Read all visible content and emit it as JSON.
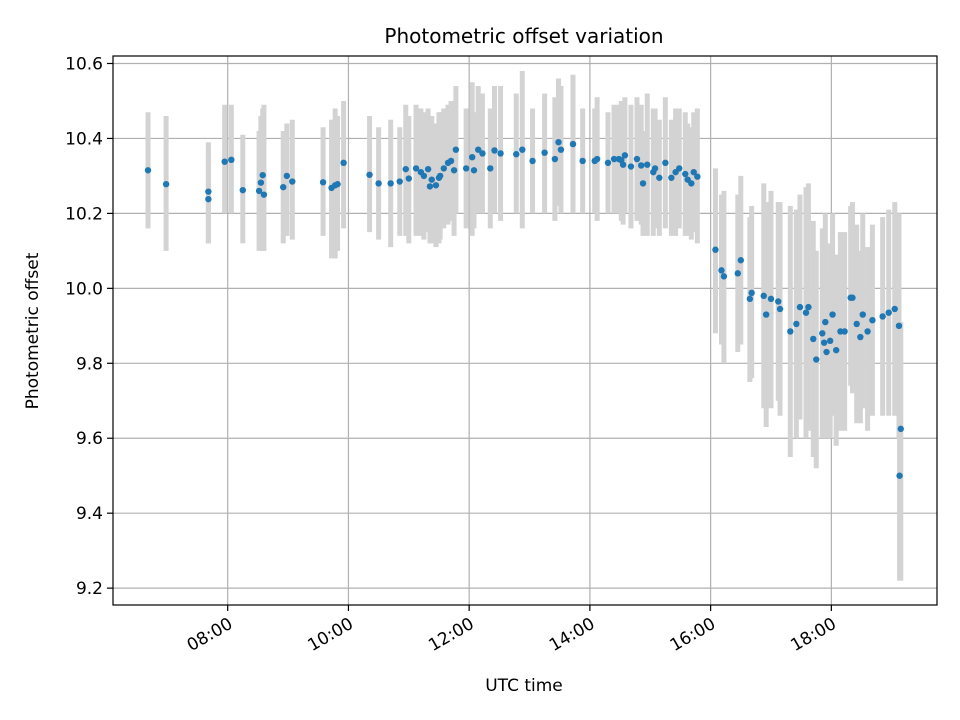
{
  "chart_data": {
    "type": "scatter",
    "title": "Photometric offset variation",
    "xlabel": "UTC time",
    "ylabel": "Photometric offset",
    "x_unit": "hours UTC",
    "xlim": [
      6.1,
      19.75
    ],
    "ylim": [
      9.155,
      10.62
    ],
    "xticks": [
      {
        "value": 8,
        "label": "08:00"
      },
      {
        "value": 10,
        "label": "10:00"
      },
      {
        "value": 12,
        "label": "12:00"
      },
      {
        "value": 14,
        "label": "14:00"
      },
      {
        "value": 16,
        "label": "16:00"
      },
      {
        "value": 18,
        "label": "18:00"
      }
    ],
    "yticks": [
      {
        "value": 9.2,
        "label": "9.2"
      },
      {
        "value": 9.4,
        "label": "9.4"
      },
      {
        "value": 9.6,
        "label": "9.6"
      },
      {
        "value": 9.8,
        "label": "9.8"
      },
      {
        "value": 10.0,
        "label": "10.0"
      },
      {
        "value": 10.2,
        "label": "10.2"
      },
      {
        "value": 10.4,
        "label": "10.4"
      },
      {
        "value": 10.6,
        "label": "10.6"
      }
    ],
    "grid": true,
    "colors": {
      "points": "#1f77b4",
      "error_bars": "#d3d3d3",
      "grid": "#b0b0b0",
      "axes": "#000000"
    },
    "series": [
      {
        "x": [
          6.68,
          6.98,
          7.68,
          7.68,
          7.95,
          8.06,
          8.25,
          8.52,
          8.55,
          8.58,
          8.6,
          8.92,
          8.98,
          9.07,
          9.58,
          9.72,
          9.78,
          9.82,
          9.92,
          10.35,
          10.5,
          10.7,
          10.85,
          10.95,
          11.0,
          11.12,
          11.2,
          11.25,
          11.32,
          11.35,
          11.38,
          11.45,
          11.5,
          11.52,
          11.58,
          11.65,
          11.7,
          11.75,
          11.78,
          11.95,
          12.05,
          12.08,
          12.15,
          12.22,
          12.35,
          12.42,
          12.52,
          12.78,
          12.88,
          13.05,
          13.25,
          13.42,
          13.48,
          13.52,
          13.72,
          13.88,
          14.08,
          14.12,
          14.3,
          14.4,
          14.48,
          14.52,
          14.55,
          14.58,
          14.68,
          14.78,
          14.85,
          14.88,
          14.95,
          15.05,
          15.08,
          15.15,
          15.25,
          15.35,
          15.42,
          15.48,
          15.58,
          15.62,
          15.68,
          15.72,
          15.78,
          16.08,
          16.18,
          16.22,
          16.45,
          16.5,
          16.65,
          16.68,
          16.88,
          16.92,
          17.0,
          17.12,
          17.15,
          17.32,
          17.42,
          17.48,
          17.58,
          17.62,
          17.7,
          17.75,
          17.85,
          17.88,
          17.9,
          17.92,
          17.98,
          18.02,
          18.08,
          18.15,
          18.22,
          18.32,
          18.35,
          18.42,
          18.48,
          18.52,
          18.6,
          18.68,
          18.85,
          18.95,
          19.05,
          19.12,
          19.15
        ],
        "y": [
          10.315,
          10.278,
          10.238,
          10.258,
          10.338,
          10.343,
          10.262,
          10.26,
          10.282,
          10.302,
          10.25,
          10.27,
          10.3,
          10.285,
          10.283,
          10.268,
          10.275,
          10.278,
          10.335,
          10.303,
          10.28,
          10.28,
          10.285,
          10.318,
          10.293,
          10.32,
          10.31,
          10.3,
          10.318,
          10.272,
          10.29,
          10.275,
          10.295,
          10.3,
          10.32,
          10.335,
          10.34,
          10.315,
          10.37,
          10.32,
          10.35,
          10.315,
          10.37,
          10.36,
          10.32,
          10.368,
          10.36,
          10.358,
          10.37,
          10.34,
          10.362,
          10.345,
          10.39,
          10.37,
          10.385,
          10.34,
          10.34,
          10.345,
          10.335,
          10.345,
          10.345,
          10.342,
          10.33,
          10.355,
          10.325,
          10.345,
          10.328,
          10.28,
          10.33,
          10.31,
          10.32,
          10.295,
          10.335,
          10.295,
          10.31,
          10.32,
          10.305,
          10.29,
          10.28,
          10.31,
          10.298,
          10.103,
          10.048,
          10.032,
          10.04,
          10.075,
          9.972,
          9.988,
          9.98,
          9.93,
          9.972,
          9.965,
          9.945,
          9.885,
          9.905,
          9.95,
          9.935,
          9.95,
          9.865,
          9.81,
          9.88,
          9.855,
          9.91,
          9.83,
          9.86,
          9.93,
          9.835,
          9.885,
          9.885,
          9.975,
          9.975,
          9.905,
          9.87,
          9.93,
          9.885,
          9.915,
          9.925,
          9.935,
          9.945,
          9.9,
          9.625
        ],
        "err_low": [
          10.16,
          10.1,
          10.12,
          10.12,
          10.2,
          10.2,
          10.12,
          10.1,
          10.1,
          10.1,
          10.1,
          10.12,
          10.14,
          10.13,
          10.14,
          10.08,
          10.08,
          10.1,
          10.16,
          10.15,
          10.13,
          10.11,
          10.14,
          10.14,
          10.12,
          10.14,
          10.14,
          10.13,
          10.15,
          10.12,
          10.12,
          10.11,
          10.12,
          10.13,
          10.16,
          10.17,
          10.18,
          10.14,
          10.2,
          10.16,
          10.14,
          10.16,
          10.2,
          10.2,
          10.16,
          10.2,
          10.18,
          10.2,
          10.16,
          10.2,
          10.2,
          10.18,
          10.22,
          10.2,
          10.2,
          10.2,
          10.2,
          10.18,
          10.2,
          10.2,
          10.2,
          10.18,
          10.17,
          10.2,
          10.16,
          10.18,
          10.17,
          10.14,
          10.14,
          10.14,
          10.16,
          10.14,
          10.16,
          10.14,
          10.14,
          10.16,
          10.14,
          10.14,
          10.13,
          10.15,
          10.12,
          9.88,
          9.85,
          9.8,
          9.83,
          9.85,
          9.75,
          9.76,
          9.68,
          9.63,
          9.68,
          9.7,
          9.66,
          9.55,
          9.6,
          9.65,
          9.6,
          9.62,
          9.55,
          9.52,
          9.6,
          9.62,
          9.62,
          9.6,
          9.6,
          9.66,
          9.58,
          9.62,
          9.62,
          9.74,
          9.72,
          9.64,
          9.64,
          9.68,
          9.62,
          9.66,
          9.66,
          9.66,
          9.66,
          9.6,
          9.22
        ],
        "err_high": [
          10.47,
          10.46,
          10.38,
          10.39,
          10.49,
          10.49,
          10.41,
          10.42,
          10.46,
          10.48,
          10.49,
          10.42,
          10.44,
          10.45,
          10.43,
          10.45,
          10.48,
          10.46,
          10.5,
          10.46,
          10.43,
          10.45,
          10.43,
          10.49,
          10.46,
          10.49,
          10.48,
          10.47,
          10.48,
          10.43,
          10.46,
          10.44,
          10.47,
          10.47,
          10.48,
          10.49,
          10.5,
          10.49,
          10.54,
          10.48,
          10.55,
          10.47,
          10.54,
          10.52,
          10.48,
          10.54,
          10.54,
          10.52,
          10.58,
          10.48,
          10.52,
          10.51,
          10.56,
          10.54,
          10.57,
          10.48,
          10.48,
          10.51,
          10.47,
          10.49,
          10.49,
          10.5,
          10.49,
          10.51,
          10.49,
          10.51,
          10.49,
          10.42,
          10.52,
          10.48,
          10.48,
          10.45,
          10.51,
          10.45,
          10.48,
          10.48,
          10.47,
          10.44,
          10.43,
          10.47,
          10.48,
          10.32,
          10.25,
          10.26,
          10.25,
          10.3,
          10.19,
          10.22,
          10.28,
          10.23,
          10.26,
          10.23,
          10.23,
          10.22,
          10.21,
          10.25,
          10.27,
          10.28,
          10.18,
          10.1,
          10.16,
          10.09,
          10.2,
          10.04,
          10.12,
          10.2,
          10.09,
          10.15,
          10.15,
          10.22,
          10.23,
          10.17,
          10.1,
          10.2,
          10.11,
          10.17,
          10.19,
          10.21,
          10.23,
          10.2,
          9.91
        ]
      }
    ],
    "outliers_lower_bars": [
      {
        "x": 19.13,
        "y": 9.5,
        "err_low": 9.22,
        "err_high": 9.79
      }
    ]
  }
}
